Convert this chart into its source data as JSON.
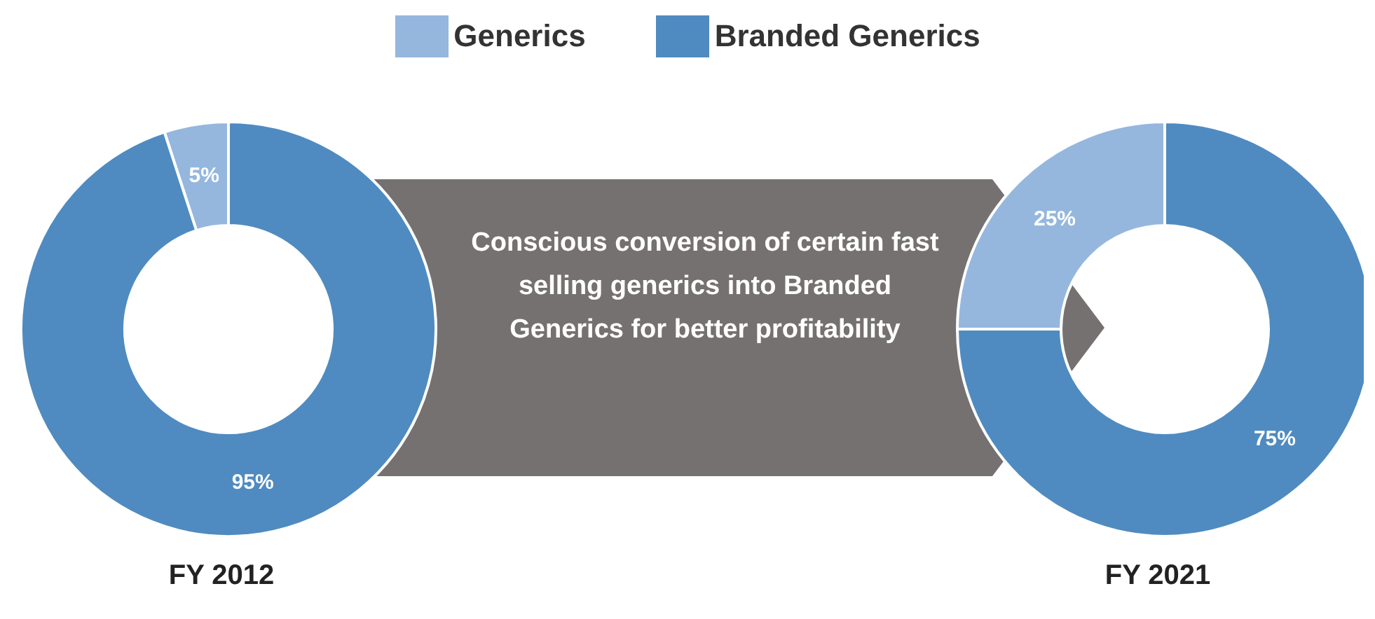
{
  "chart_data": {
    "type": "donut",
    "categories": [
      "Generics",
      "Branded Generics"
    ],
    "colors": [
      "#95b7de",
      "#4f8bc0"
    ],
    "legend": "top",
    "series": [
      {
        "name": "FY 2012",
        "values": [
          5,
          95
        ],
        "value_labels": [
          "5%",
          "95%"
        ]
      },
      {
        "name": "FY 2021",
        "values": [
          25,
          75
        ],
        "value_labels": [
          "25%",
          "75%"
        ]
      }
    ],
    "annotations": [
      "Conscious conversion of certain fast selling generics into Branded Generics for better profitability"
    ]
  }
}
